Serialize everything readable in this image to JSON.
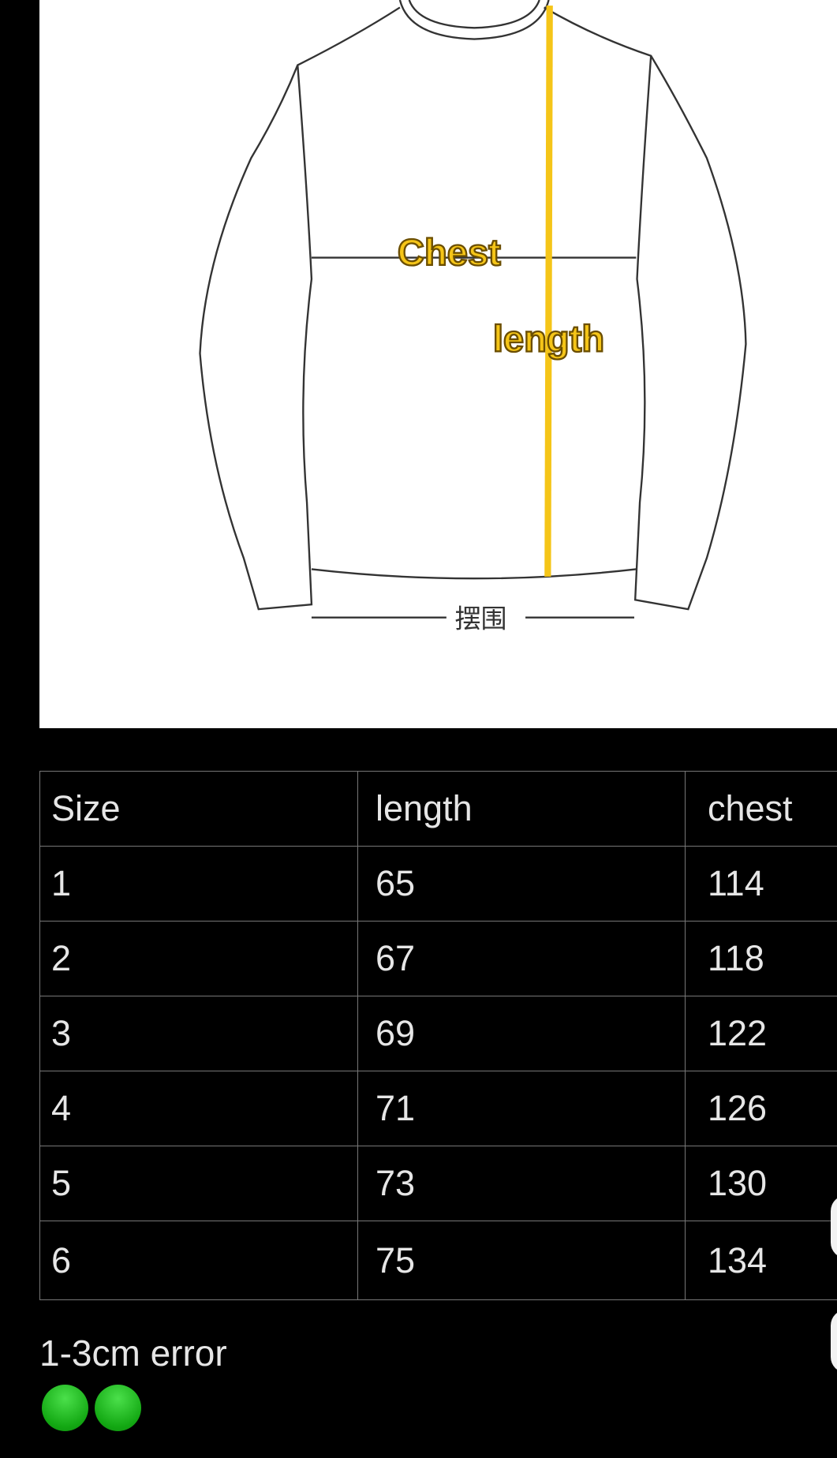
{
  "diagram": {
    "labels": {
      "chest": "Chest",
      "length": "length",
      "hem": "摆围"
    },
    "highlight_color": "#f5c518"
  },
  "table": {
    "headers": [
      "Size",
      "length",
      "chest"
    ],
    "rows": [
      [
        "1",
        "65",
        "114"
      ],
      [
        "2",
        "67",
        "118"
      ],
      [
        "3",
        "69",
        "122"
      ],
      [
        "4",
        "71",
        "126"
      ],
      [
        "5",
        "73",
        "130"
      ],
      [
        "6",
        "75",
        "134"
      ]
    ]
  },
  "note": "1-3cm error",
  "emoji": [
    "green-circle",
    "green-circle"
  ]
}
